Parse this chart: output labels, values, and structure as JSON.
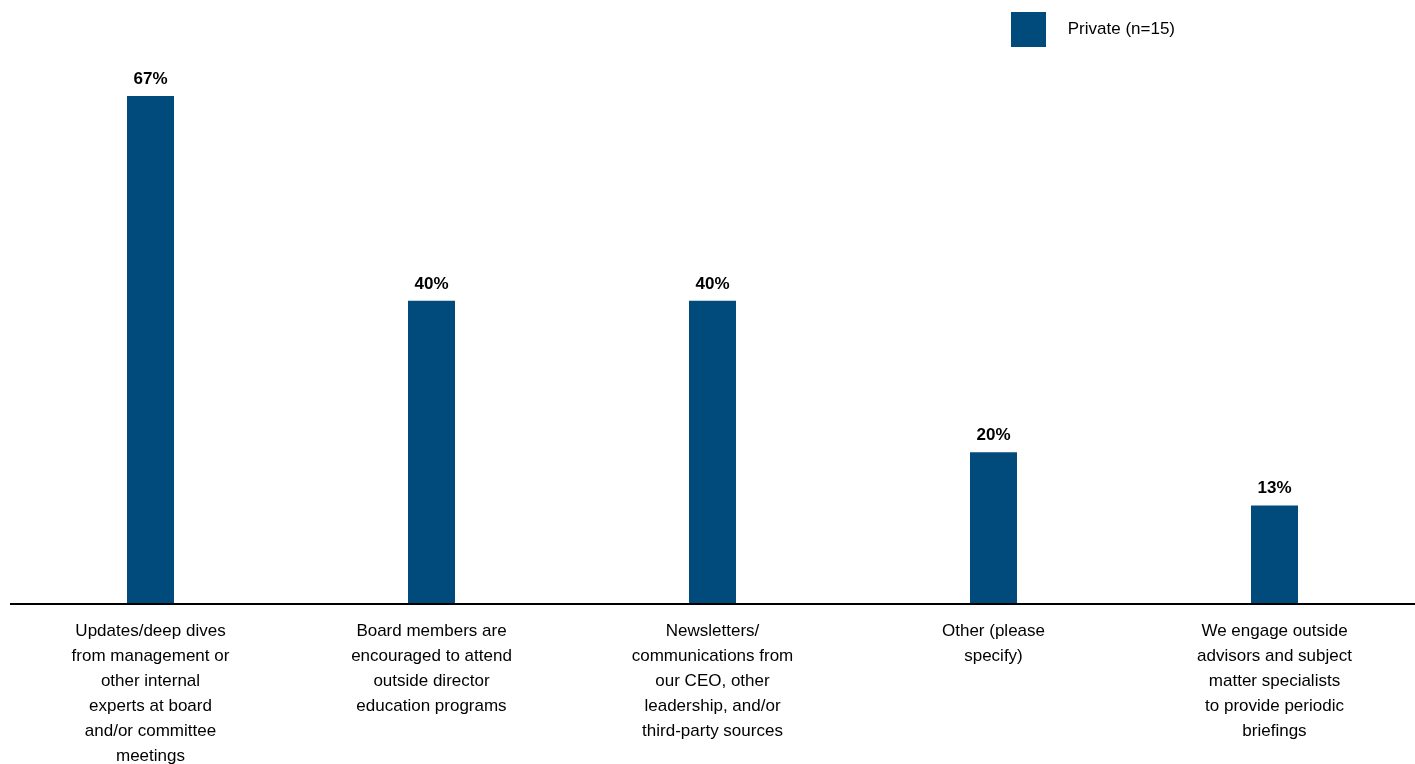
{
  "chart_data": {
    "type": "bar",
    "categories": [
      "Updates/deep dives from management or other internal experts at board and/or committee meetings",
      "Board members are encouraged to attend outside director education programs",
      "Newsletters/ communications from our CEO, other leadership, and/or third-party sources",
      "Other (please specify)",
      "We engage outside advisors and subject matter specialists to provide periodic briefings"
    ],
    "series": [
      {
        "name": "Private (n=15)",
        "color": "#004a7c",
        "values": [
          67,
          40,
          40,
          20,
          13
        ],
        "value_labels": [
          "67%",
          "40%",
          "40%",
          "20%",
          "13%"
        ]
      }
    ],
    "legend": "top right",
    "grid": false
  }
}
